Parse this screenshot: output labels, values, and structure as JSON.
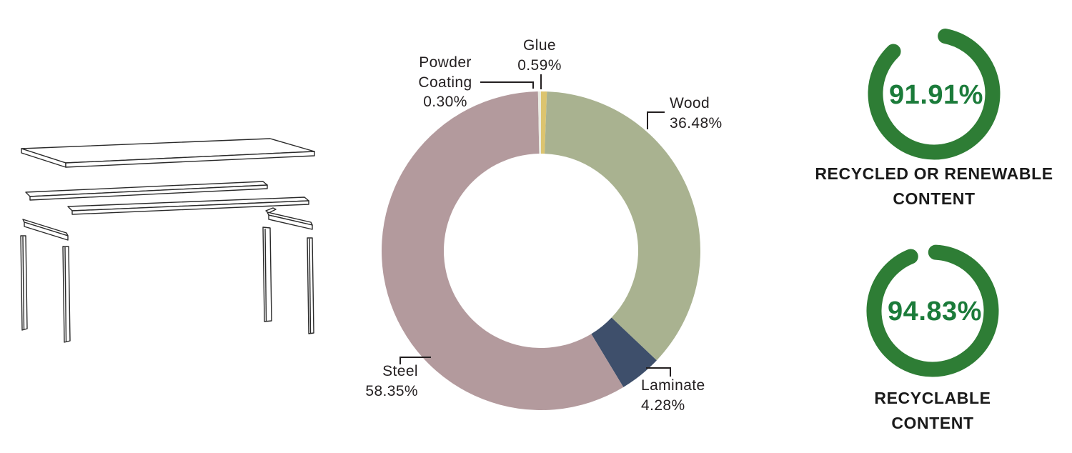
{
  "chart_data": [
    {
      "type": "pie",
      "subtype": "donut",
      "title": "",
      "start_angle": "top",
      "direction": "clockwise",
      "text_color": "#231f20",
      "leader_line_color": "#231f20",
      "segments": [
        {
          "label": "Glue",
          "value": 0.59,
          "value_label": "0.59%",
          "color": "#dcc46f"
        },
        {
          "label": "Wood",
          "value": 36.48,
          "value_label": "36.48%",
          "color": "#a9b290"
        },
        {
          "label": "Laminate",
          "value": 4.28,
          "value_label": "4.28%",
          "color": "#3e4f6b"
        },
        {
          "label": "Steel",
          "value": 58.35,
          "value_label": "58.35%",
          "color": "#b39a9d"
        },
        {
          "label": "Powder Coating",
          "value": 0.3,
          "value_label": "0.30%",
          "color": "#eaece3"
        }
      ]
    },
    {
      "type": "progress-ring",
      "value": 91.91,
      "value_label": "91.91%",
      "caption_line1": "RECYCLED OR RENEWABLE",
      "caption_line2": "CONTENT",
      "ring_color": "#2e7d35",
      "value_color": "#1b7b3a"
    },
    {
      "type": "progress-ring",
      "value": 94.83,
      "value_label": "94.83%",
      "caption_line1": "RECYCLABLE",
      "caption_line2": "CONTENT",
      "ring_color": "#2e7d35",
      "value_color": "#1b7b3a"
    }
  ]
}
